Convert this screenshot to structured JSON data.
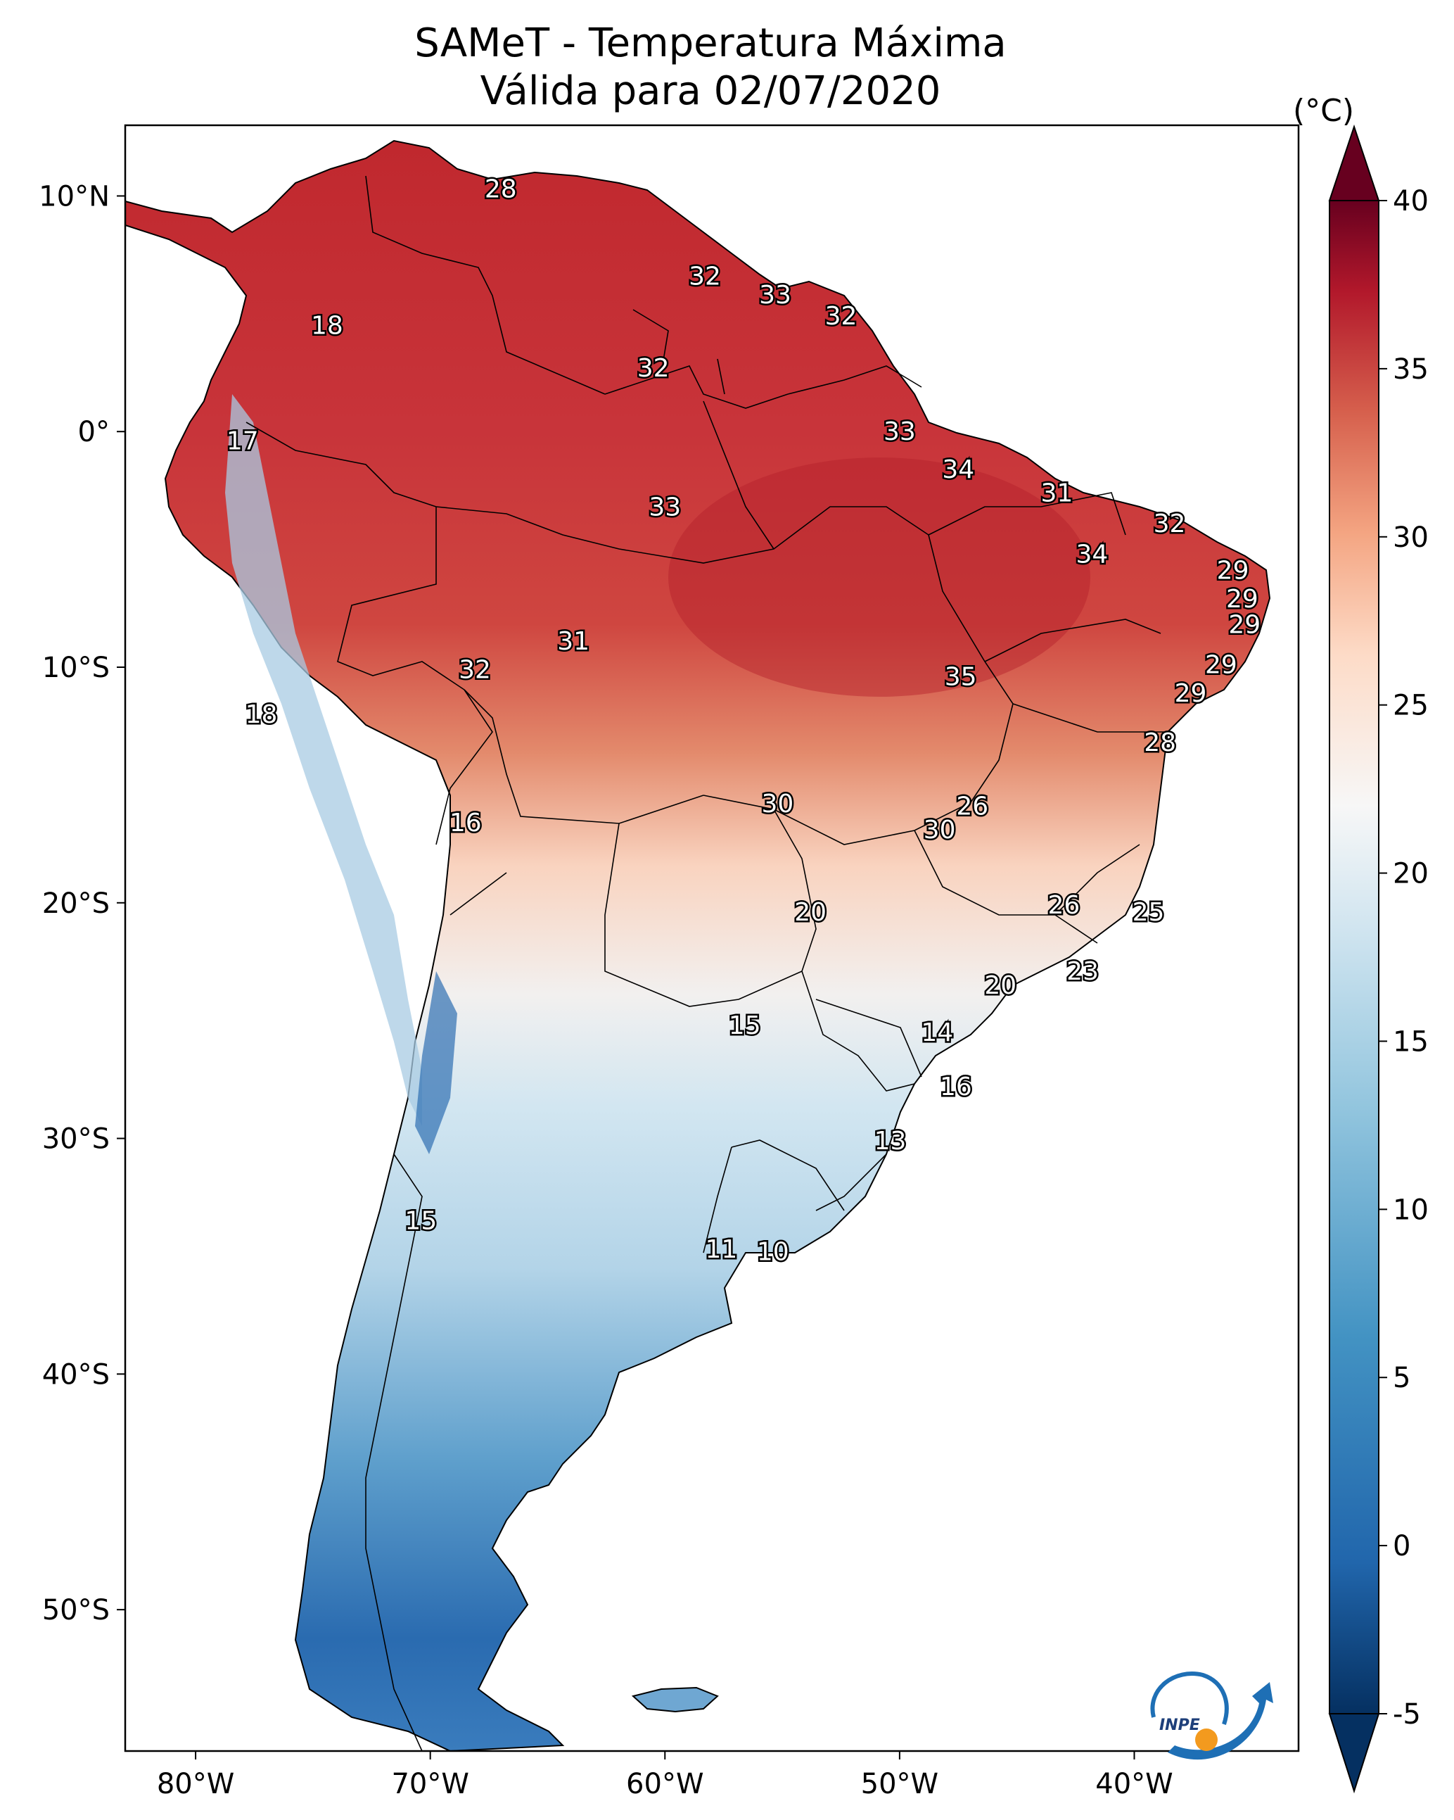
{
  "title_line1": "SAMeT - Temperatura Máxima",
  "title_line2": "Válida para 02/07/2020",
  "colorbar": {
    "unit": "(°C)",
    "ticks": [
      "40",
      "35",
      "30",
      "25",
      "20",
      "15",
      "10",
      "5",
      "0",
      "-5"
    ]
  },
  "axes": {
    "lon_ticks": [
      "80°W",
      "70°W",
      "60°W",
      "50°W",
      "40°W"
    ],
    "lat_ticks": [
      "10°N",
      "0°",
      "10°S",
      "20°S",
      "30°S",
      "40°S",
      "50°S"
    ]
  },
  "logo": {
    "text": "INPE",
    "icon": "inpe-logo-icon"
  },
  "labels": [
    {
      "v": "28",
      "lon": -67.0,
      "lat": 10.3
    },
    {
      "v": "18",
      "lon": -74.4,
      "lat": 4.5
    },
    {
      "v": "32",
      "lon": -58.3,
      "lat": 6.6
    },
    {
      "v": "33",
      "lon": -55.3,
      "lat": 5.8
    },
    {
      "v": "32",
      "lon": -52.5,
      "lat": 4.9
    },
    {
      "v": "32",
      "lon": -60.5,
      "lat": 2.7
    },
    {
      "v": "33",
      "lon": -50.0,
      "lat": -0.0
    },
    {
      "v": "17",
      "lon": -78.0,
      "lat": -0.4
    },
    {
      "v": "34",
      "lon": -47.5,
      "lat": -1.6
    },
    {
      "v": "31",
      "lon": -43.3,
      "lat": -2.6
    },
    {
      "v": "32",
      "lon": -38.5,
      "lat": -3.9
    },
    {
      "v": "33",
      "lon": -60.0,
      "lat": -3.2
    },
    {
      "v": "34",
      "lon": -41.8,
      "lat": -5.2
    },
    {
      "v": "29",
      "lon": -35.8,
      "lat": -5.9
    },
    {
      "v": "29",
      "lon": -35.4,
      "lat": -7.1
    },
    {
      "v": "29",
      "lon": -35.3,
      "lat": -8.2
    },
    {
      "v": "29",
      "lon": -36.3,
      "lat": -9.9
    },
    {
      "v": "29",
      "lon": -37.6,
      "lat": -11.1
    },
    {
      "v": "31",
      "lon": -63.9,
      "lat": -8.9
    },
    {
      "v": "32",
      "lon": -68.1,
      "lat": -10.1
    },
    {
      "v": "35",
      "lon": -47.4,
      "lat": -10.4
    },
    {
      "v": "28",
      "lon": -38.9,
      "lat": -13.2
    },
    {
      "v": "18",
      "lon": -77.2,
      "lat": -12.0
    },
    {
      "v": "16",
      "lon": -68.5,
      "lat": -16.6
    },
    {
      "v": "30",
      "lon": -55.2,
      "lat": -15.8
    },
    {
      "v": "26",
      "lon": -46.9,
      "lat": -15.9
    },
    {
      "v": "30",
      "lon": -48.3,
      "lat": -16.9
    },
    {
      "v": "20",
      "lon": -53.8,
      "lat": -20.4
    },
    {
      "v": "26",
      "lon": -43.0,
      "lat": -20.1
    },
    {
      "v": "25",
      "lon": -39.4,
      "lat": -20.4
    },
    {
      "v": "23",
      "lon": -42.2,
      "lat": -22.9
    },
    {
      "v": "20",
      "lon": -45.7,
      "lat": -23.5
    },
    {
      "v": "15",
      "lon": -56.6,
      "lat": -25.2
    },
    {
      "v": "14",
      "lon": -48.4,
      "lat": -25.5
    },
    {
      "v": "16",
      "lon": -47.6,
      "lat": -27.8
    },
    {
      "v": "13",
      "lon": -50.4,
      "lat": -30.1
    },
    {
      "v": "15",
      "lon": -70.4,
      "lat": -33.5
    },
    {
      "v": "11",
      "lon": -57.6,
      "lat": -34.7
    },
    {
      "v": "10",
      "lon": -55.4,
      "lat": -34.8
    }
  ]
}
